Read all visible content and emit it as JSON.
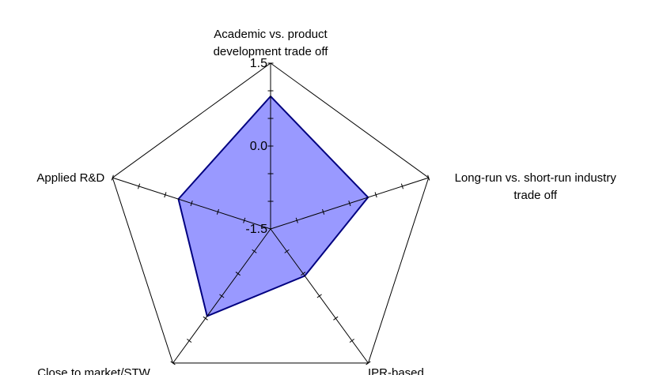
{
  "chart_data": {
    "type": "radar",
    "title": "",
    "axes": [
      {
        "label_lines": [
          "Academic vs. product",
          "development trade off"
        ],
        "value": 0.9
      },
      {
        "label_lines": [
          "Long-run vs. short-run industry",
          "trade off"
        ],
        "value": 0.35
      },
      {
        "label_lines": [
          "IPR-based"
        ],
        "value": -0.45
      },
      {
        "label_lines": [
          "Close to market/STW"
        ],
        "value": 0.45
      },
      {
        "label_lines": [
          "Applied R&D"
        ],
        "value": 0.25
      }
    ],
    "range": [
      -1.5,
      1.5
    ],
    "ticks": {
      "labels": [
        "-1.5",
        "0.0",
        "1.5"
      ],
      "values": [
        -1.5,
        0.0,
        1.5
      ],
      "minor_step": 0.5
    },
    "series": [
      {
        "values": [
          0.9,
          0.35,
          -0.45,
          0.45,
          0.25
        ],
        "color": "#9999ff",
        "stroke": "#000080"
      }
    ],
    "grid_color": "#000000",
    "legend": "none"
  }
}
